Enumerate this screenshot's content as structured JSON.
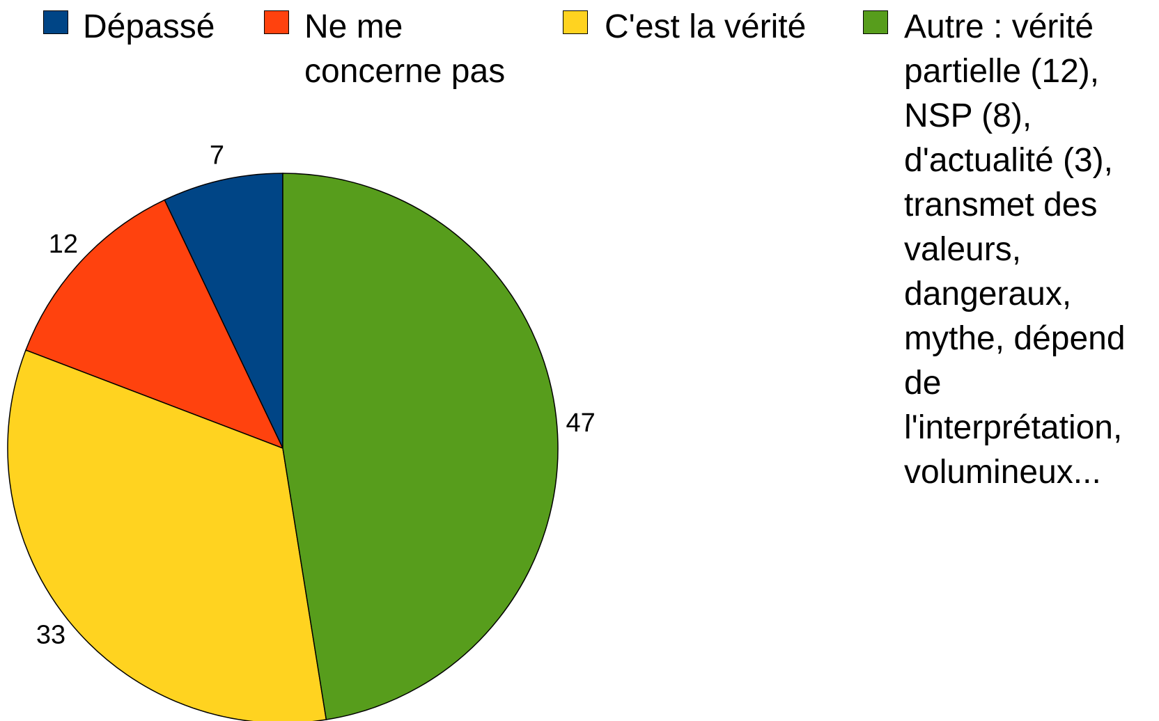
{
  "chart_data": {
    "type": "pie",
    "categories": [
      "Dépassé",
      "Ne me concerne pas",
      "C'est la vérité",
      "Autre : vérité partielle (12), NSP (8), d'actualité (3), transmet des valeurs, dangeraux, mythe, dépend de l'interprétation, volumineux..."
    ],
    "values": [
      7,
      12,
      33,
      47
    ],
    "colors": [
      "#004586",
      "#ff420e",
      "#ffd320",
      "#579d1c"
    ],
    "legend": "top"
  }
}
